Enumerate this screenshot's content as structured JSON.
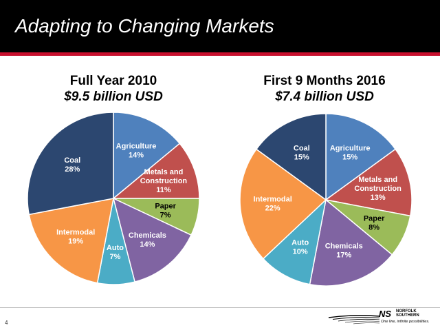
{
  "slide": {
    "title": "Adapting to Changing Markets",
    "page_number": "4"
  },
  "logo": {
    "mark": "NS",
    "brand_line1": "NORFOLK",
    "brand_line2": "SOUTHERN",
    "tagline": "One line, infinite possibilities."
  },
  "colors": {
    "header": "#000000",
    "stripe": "#c8102e",
    "slices": {
      "Agriculture": "#4f81bd",
      "Metals and Construction": "#c0504d",
      "Paper": "#9bbb59",
      "Chemicals": "#8064a2",
      "Auto": "#4bacc6",
      "Intermodal": "#f79646",
      "Coal": "#2c4770"
    }
  },
  "chart_data": [
    {
      "type": "pie",
      "title": "Full Year 2010",
      "subtitle": "$9.5 billion  USD",
      "unit": "%",
      "categories": [
        "Agriculture",
        "Metals and Construction",
        "Paper",
        "Chemicals",
        "Auto",
        "Intermodal",
        "Coal"
      ],
      "values": [
        14,
        11,
        7,
        14,
        7,
        19,
        28
      ],
      "legend": "none"
    },
    {
      "type": "pie",
      "title": "First 9 Months 2016",
      "subtitle": "$7.4 billion  USD",
      "unit": "%",
      "categories": [
        "Agriculture",
        "Metals and Construction",
        "Paper",
        "Chemicals",
        "Auto",
        "Intermodal",
        "Coal"
      ],
      "values": [
        15,
        13,
        8,
        17,
        10,
        22,
        15
      ],
      "legend": "none"
    }
  ]
}
